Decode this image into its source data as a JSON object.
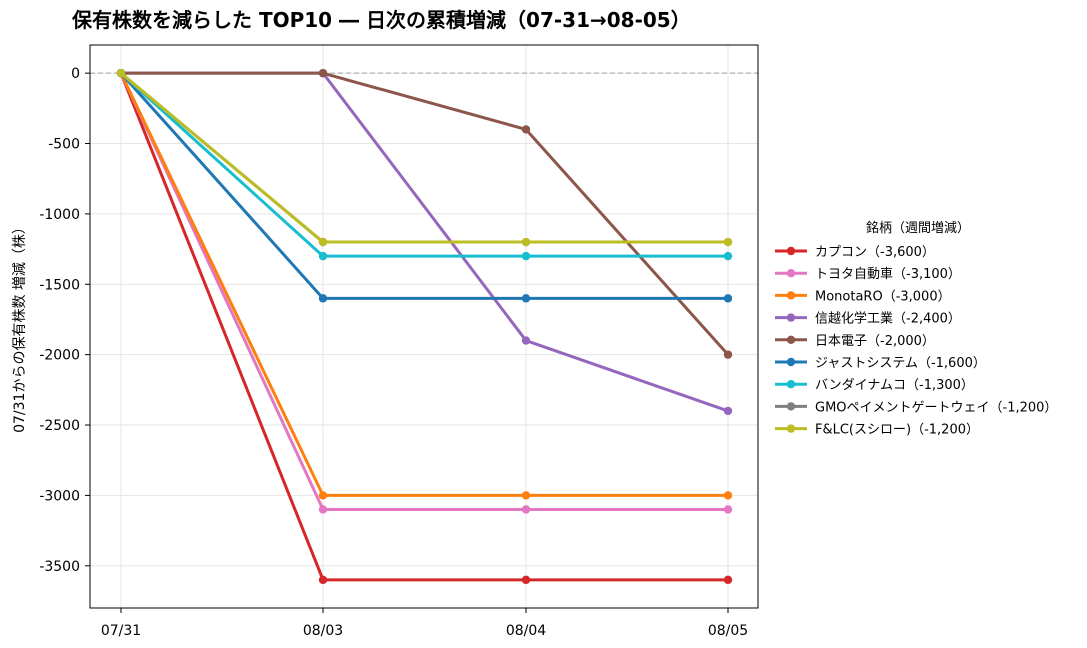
{
  "chart_data": {
    "type": "line",
    "title": "保有株数を減らした TOP10 ― 日次の累積増減（07-31→08-05）",
    "xlabel": "",
    "ylabel": "07/31からの保有株数 増減（株）",
    "categories": [
      "07/31",
      "08/03",
      "08/04",
      "08/05"
    ],
    "ylim": [
      -3800,
      200
    ],
    "yticks": [
      0,
      -500,
      -1000,
      -1500,
      -2000,
      -2500,
      -3000,
      -3500
    ],
    "ytick_labels": [
      "0",
      "-500",
      "-1000",
      "-1500",
      "-2000",
      "-2500",
      "-3000",
      "-3500"
    ],
    "grid": true,
    "zero_line": true,
    "legend_title": "銘柄（週間増減）",
    "legend_position": "right",
    "series": [
      {
        "name": "カプコン（-3,600）",
        "color": "#d62728",
        "values": [
          0,
          -3600,
          -3600,
          -3600
        ]
      },
      {
        "name": "トヨタ自動車（-3,100）",
        "color": "#e377c2",
        "values": [
          0,
          -3100,
          -3100,
          -3100
        ]
      },
      {
        "name": "MonotaRO（-3,000）",
        "color": "#ff7f0e",
        "values": [
          0,
          -3000,
          -3000,
          -3000
        ]
      },
      {
        "name": "信越化学工業（-2,400）",
        "color": "#9467bd",
        "values": [
          0,
          0,
          -1900,
          -2400
        ]
      },
      {
        "name": "日本電子（-2,000）",
        "color": "#8c564b",
        "values": [
          0,
          0,
          -400,
          -2000
        ]
      },
      {
        "name": "ジャストシステム（-1,600）",
        "color": "#1f77b4",
        "values": [
          0,
          -1600,
          -1600,
          -1600
        ]
      },
      {
        "name": "バンダイナムコ（-1,300）",
        "color": "#17becf",
        "values": [
          0,
          -1300,
          -1300,
          -1300
        ]
      },
      {
        "name": "GMOペイメントゲートウェイ（-1,200）",
        "color": "#7f7f7f",
        "values": [
          0,
          -1200,
          -1200,
          -1200
        ]
      },
      {
        "name": "F&LC(スシロー)（-1,200）",
        "color": "#bcbd22",
        "values": [
          0,
          -1200,
          -1200,
          -1200
        ]
      }
    ]
  }
}
